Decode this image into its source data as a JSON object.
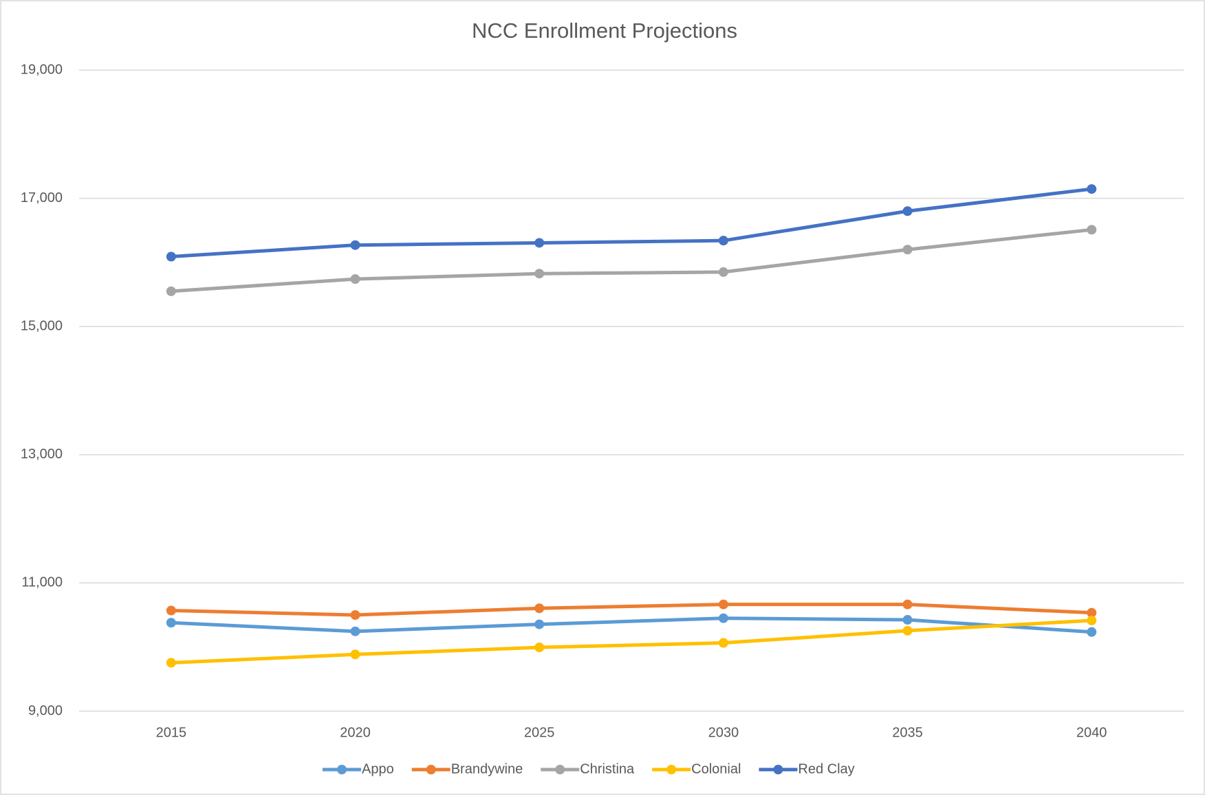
{
  "chart_data": {
    "type": "line",
    "title": "NCC Enrollment Projections",
    "categories": [
      "2015",
      "2020",
      "2025",
      "2030",
      "2035",
      "2040"
    ],
    "series": [
      {
        "name": "Appo",
        "color": "#5b9bd5",
        "values": [
          10380,
          10245,
          10355,
          10450,
          10425,
          10235
        ]
      },
      {
        "name": "Brandywine",
        "color": "#ed7d31",
        "values": [
          10570,
          10500,
          10605,
          10665,
          10665,
          10535
        ]
      },
      {
        "name": "Christina",
        "color": "#a5a5a5",
        "values": [
          15550,
          15740,
          15825,
          15850,
          16200,
          16510
        ]
      },
      {
        "name": "Colonial",
        "color": "#ffc000",
        "values": [
          9755,
          9885,
          9995,
          10065,
          10255,
          10415
        ]
      },
      {
        "name": "Red Clay",
        "color": "#4472c4",
        "values": [
          16090,
          16270,
          16305,
          16340,
          16800,
          17145
        ]
      }
    ],
    "ylim": [
      9000,
      19000
    ],
    "yticks": [
      {
        "value": 9000,
        "label": "9,000"
      },
      {
        "value": 11000,
        "label": "11,000"
      },
      {
        "value": 13000,
        "label": "13,000"
      },
      {
        "value": 15000,
        "label": "15,000"
      },
      {
        "value": 17000,
        "label": "17,000"
      },
      {
        "value": 19000,
        "label": "19,000"
      }
    ],
    "grid": true,
    "legend": "bottom"
  }
}
